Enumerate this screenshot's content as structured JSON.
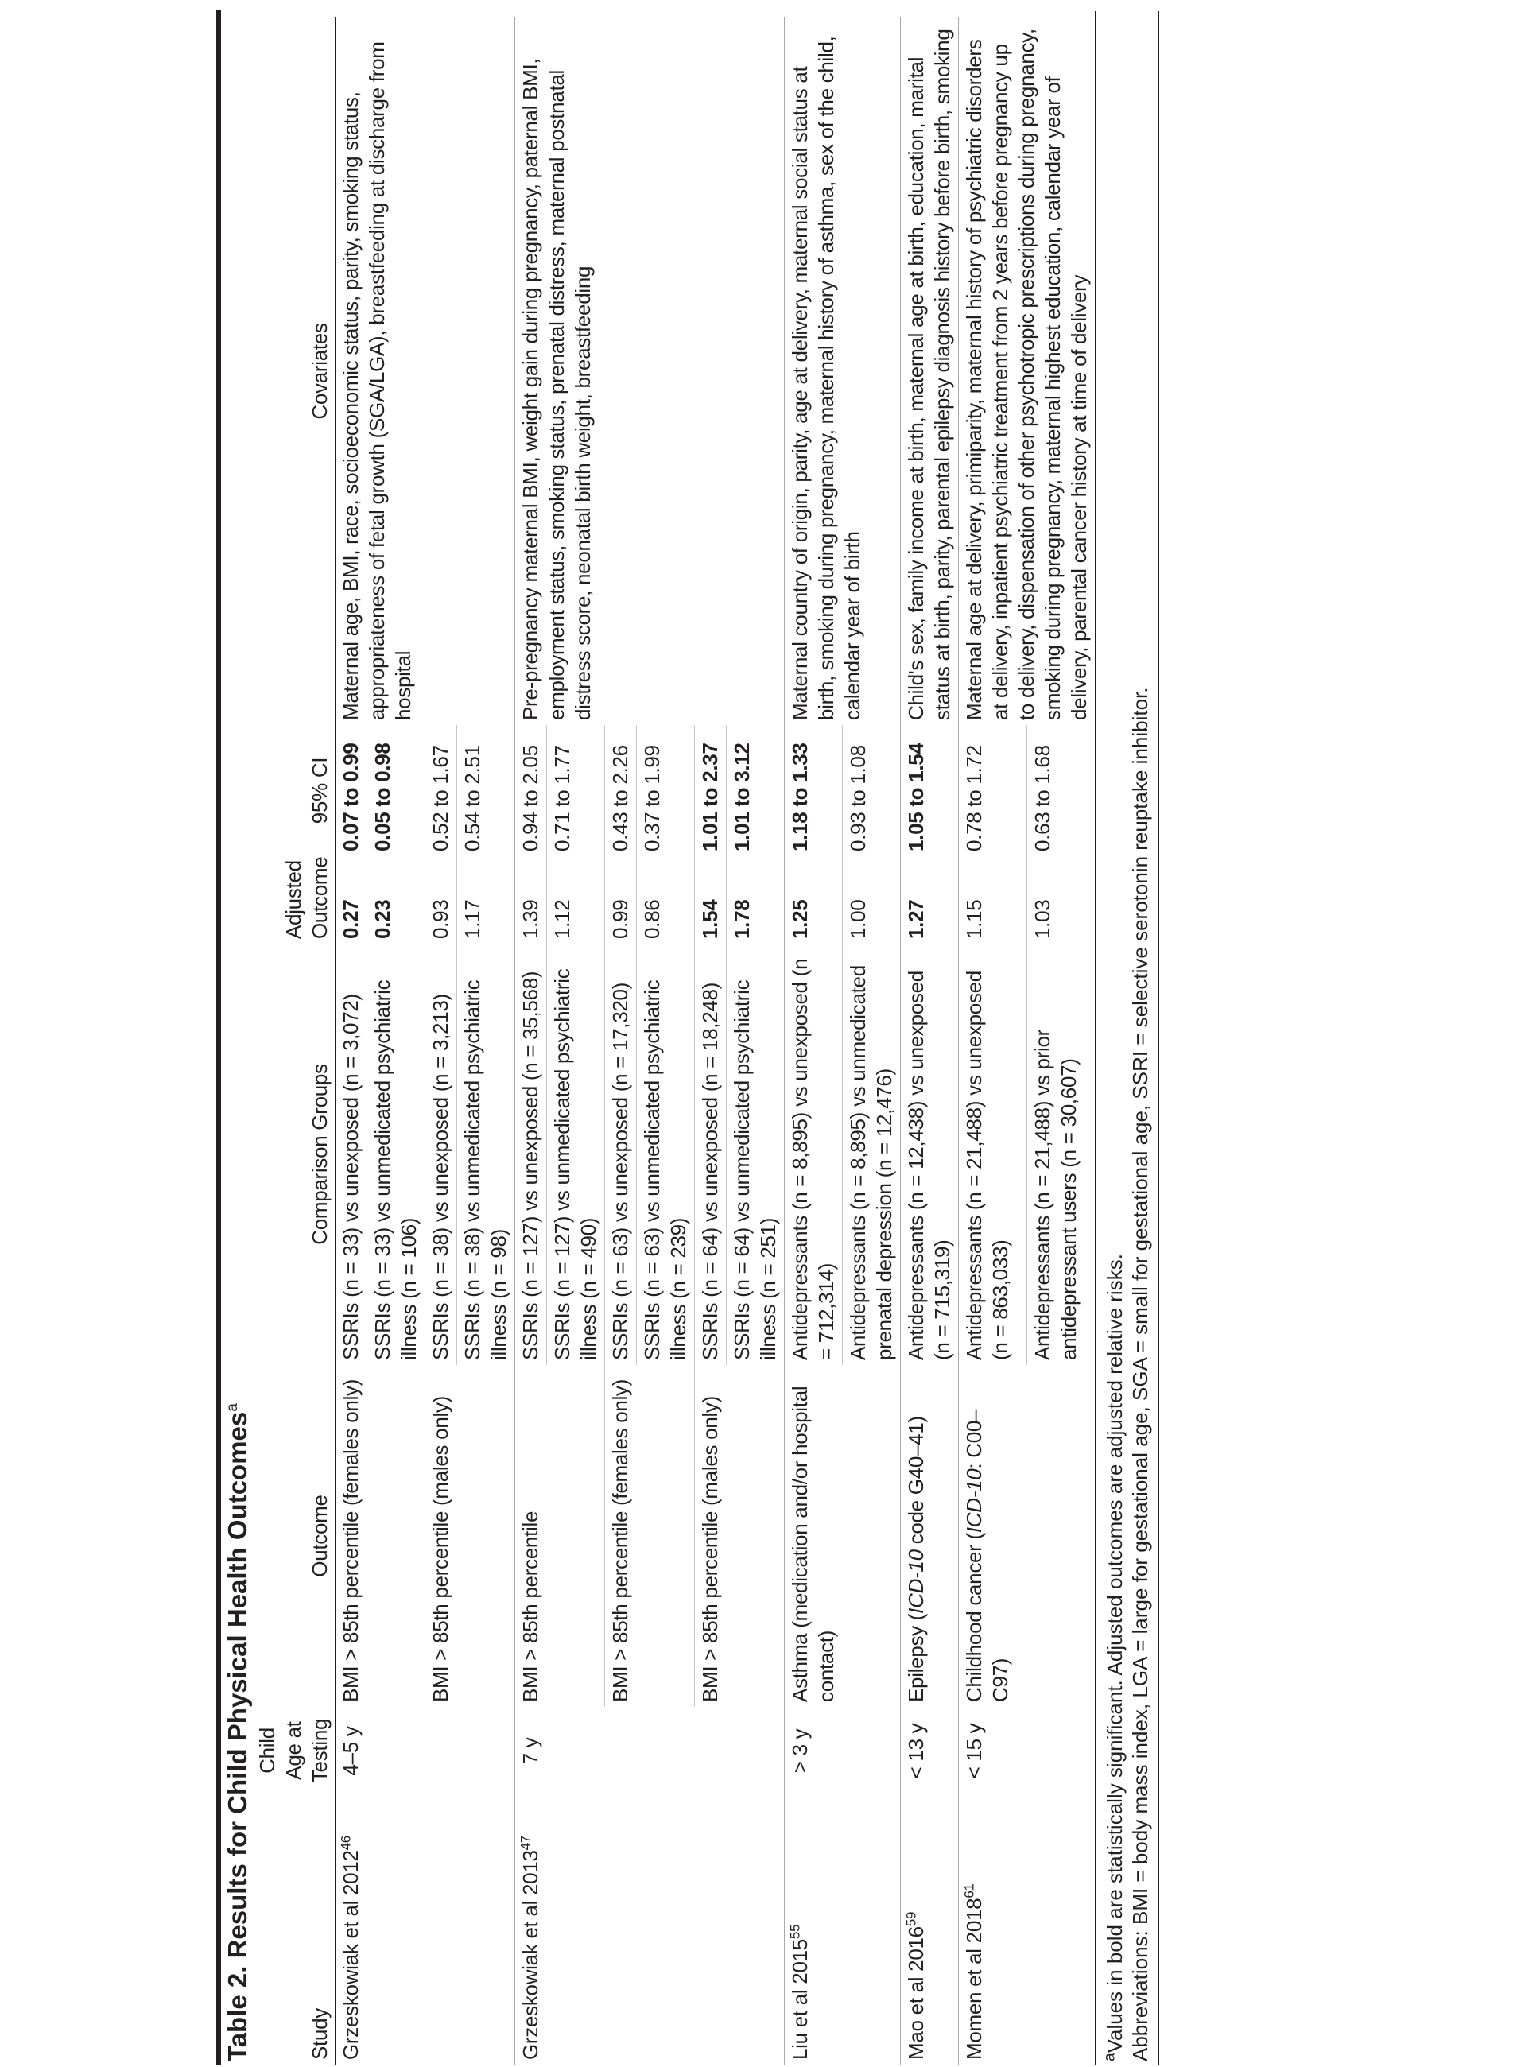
{
  "title": {
    "text": "Table 2. Results for Child Physical Health Outcomes",
    "sup": "a"
  },
  "headers": {
    "study": "Study",
    "age": "Child Age at Testing",
    "outcome": "Outcome",
    "comparison": "Comparison Groups",
    "adjusted": "Adjusted Outcome",
    "ci": "95% CI",
    "covariates": "Covariates"
  },
  "studies": [
    {
      "study": "Grzeskowiak et al 2012",
      "ref": "46",
      "age": "4–5 y",
      "covariates": "Maternal age, BMI, race, socioeconomic status, parity, smoking status, appropriateness of fetal growth (SGA/LGA), breastfeeding at discharge from hospital",
      "outcomes": [
        {
          "pre": "BMI > 85th percentile (females only)",
          "ital": "",
          "post": "",
          "comparisons": [
            {
              "group": "SSRIs (n = 33) vs unexposed (n = 3,072)",
              "adjusted": "0.27",
              "ci": "0.07 to 0.99",
              "significant": true
            },
            {
              "group": "SSRIs (n = 33) vs unmedicated psychiatric illness (n = 106)",
              "adjusted": "0.23",
              "ci": "0.05 to 0.98",
              "significant": true
            }
          ]
        },
        {
          "pre": "BMI > 85th percentile (males only)",
          "ital": "",
          "post": "",
          "comparisons": [
            {
              "group": "SSRIs (n = 38) vs unexposed (n = 3,213)",
              "adjusted": "0.93",
              "ci": "0.52 to 1.67",
              "significant": false
            },
            {
              "group": "SSRIs (n = 38) vs unmedicated psychiatric illness (n = 98)",
              "adjusted": "1.17",
              "ci": "0.54 to 2.51",
              "significant": false
            }
          ]
        }
      ]
    },
    {
      "study": "Grzeskowiak et al 2013",
      "ref": "47",
      "age": "7 y",
      "covariates": "Pre-pregnancy maternal BMI, weight gain during pregnancy, paternal BMI, employment status, smoking status, prenatal distress, maternal postnatal distress score, neonatal birth weight, breastfeeding",
      "outcomes": [
        {
          "pre": "BMI > 85th percentile",
          "ital": "",
          "post": "",
          "comparisons": [
            {
              "group": "SSRIs (n = 127) vs unexposed (n = 35,568)",
              "adjusted": "1.39",
              "ci": "0.94 to 2.05",
              "significant": false
            },
            {
              "group": "SSRIs (n = 127) vs unmedicated psychiatric illness (n = 490)",
              "adjusted": "1.12",
              "ci": "0.71 to 1.77",
              "significant": false
            }
          ]
        },
        {
          "pre": "BMI > 85th percentile (females only)",
          "ital": "",
          "post": "",
          "comparisons": [
            {
              "group": "SSRIs (n = 63) vs unexposed (n = 17,320)",
              "adjusted": "0.99",
              "ci": "0.43 to 2.26",
              "significant": false
            },
            {
              "group": "SSRIs (n = 63) vs unmedicated psychiatric illness (n = 239)",
              "adjusted": "0.86",
              "ci": "0.37 to 1.99",
              "significant": false
            }
          ]
        },
        {
          "pre": "BMI > 85th percentile (males only)",
          "ital": "",
          "post": "",
          "comparisons": [
            {
              "group": "SSRIs (n = 64) vs unexposed (n = 18,248)",
              "adjusted": "1.54",
              "ci": "1.01 to 2.37",
              "significant": true
            },
            {
              "group": "SSRIs (n = 64) vs unmedicated psychiatric illness (n = 251)",
              "adjusted": "1.78",
              "ci": "1.01 to 3.12",
              "significant": true
            }
          ]
        }
      ]
    },
    {
      "study": "Liu et al 2015",
      "ref": "55",
      "age": "> 3 y",
      "covariates": "Maternal country of origin, parity, age at delivery, maternal social status at birth, smoking during pregnancy, maternal history of asthma, sex of the child, calendar year of birth",
      "outcomes": [
        {
          "pre": "Asthma (medication and/or hospital contact)",
          "ital": "",
          "post": "",
          "comparisons": [
            {
              "group": "Antidepressants (n = 8,895) vs unexposed (n = 712,314)",
              "adjusted": "1.25",
              "ci": "1.18 to 1.33",
              "significant": true
            },
            {
              "group": "Antidepressants (n = 8,895) vs unmedicated prenatal depression (n = 12,476)",
              "adjusted": "1.00",
              "ci": "0.93 to 1.08",
              "significant": false
            }
          ]
        }
      ]
    },
    {
      "study": "Mao et al 2016",
      "ref": "59",
      "age": "< 13 y",
      "covariates": "Child's sex, family income at birth, maternal age at birth, education, marital status at birth, parity, parental epilepsy diagnosis history before birth, smoking",
      "outcomes": [
        {
          "pre": "Epilepsy (",
          "ital": "ICD-10",
          "post": " code G40–41)",
          "comparisons": [
            {
              "group": "Antidepressants (n = 12,438) vs unexposed (n = 715,319)",
              "adjusted": "1.27",
              "ci": "1.05 to 1.54",
              "significant": true
            }
          ]
        }
      ]
    },
    {
      "study": "Momen et al 2018",
      "ref": "61",
      "age": "< 15 y",
      "covariates": "Maternal age at delivery, primiparity, maternal history of psychiatric disorders at delivery, inpatient psychiatric treatment from 2 years before pregnancy up to delivery, dispensation of other psychotropic prescriptions during pregnancy, smoking during pregnancy, maternal highest education, calendar year of delivery, parental cancer history at time of delivery",
      "outcomes": [
        {
          "pre": "Childhood cancer (",
          "ital": "ICD-10",
          "post": ": C00–C97)",
          "comparisons": [
            {
              "group": "Antidepressants (n = 21,488) vs unexposed (n = 863,033)",
              "adjusted": "1.15",
              "ci": "0.78 to 1.72",
              "significant": false
            },
            {
              "group": "Antidepressants (n = 21,488) vs prior antidepressant users (n = 30,607)",
              "adjusted": "1.03",
              "ci": "0.63 to 1.68",
              "significant": false
            }
          ]
        }
      ]
    }
  ],
  "footnotes": {
    "note_sup": "a",
    "note": "Values in bold are statistically significant. Adjusted outcomes are adjusted relative risks.",
    "abbreviations": "Abbreviations: BMI = body mass index, LGA = large for gestational age, SGA = small for gestational age, SSRI = selective serotonin reuptake inhibitor."
  }
}
